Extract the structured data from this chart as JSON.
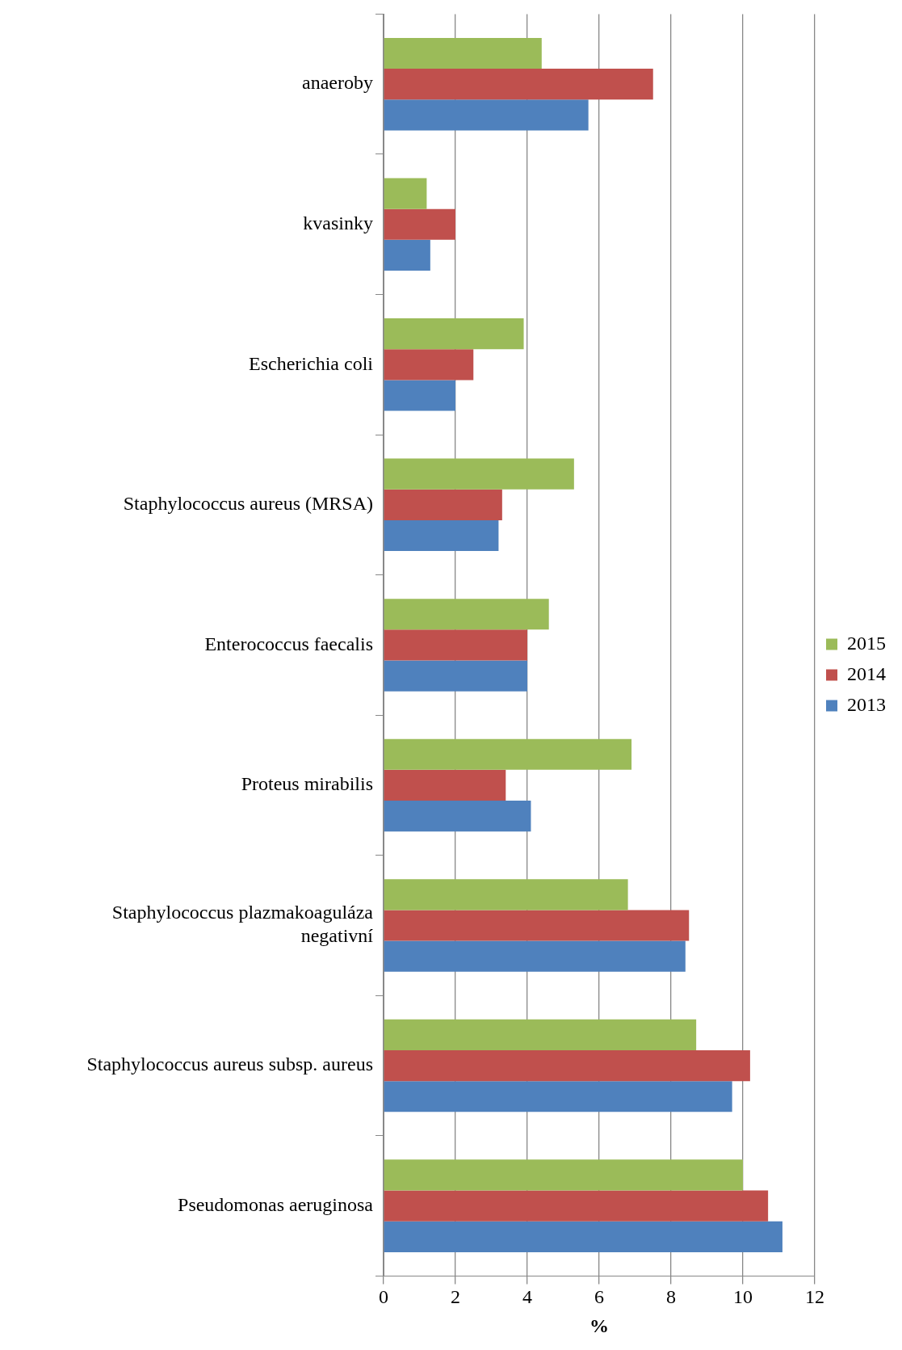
{
  "chart_data": {
    "type": "bar",
    "orientation": "horizontal",
    "xlabel": "%",
    "categories": [
      "anaeroby",
      "kvasinky",
      "Escherichia coli",
      "Staphylococcus aureus (MRSA)",
      "Enterococcus faecalis",
      "Proteus mirabilis",
      "Staphylococcus plazmakoaguláza negativní",
      "Staphylococcus aureus subsp. aureus",
      "Pseudomonas aeruginosa"
    ],
    "series": [
      {
        "name": "2015",
        "color": "#9bbb59",
        "values": [
          4.4,
          1.2,
          3.9,
          5.3,
          4.6,
          6.9,
          6.8,
          8.7,
          10.0
        ]
      },
      {
        "name": "2014",
        "color": "#c0504d",
        "values": [
          7.5,
          2.0,
          2.5,
          3.3,
          4.0,
          3.4,
          8.5,
          10.2,
          10.7
        ]
      },
      {
        "name": "2013",
        "color": "#4f81bd",
        "values": [
          5.7,
          1.3,
          2.0,
          3.2,
          4.0,
          4.1,
          8.4,
          9.7,
          11.1
        ]
      }
    ],
    "xlim": [
      0,
      12
    ],
    "xticks": [
      0,
      2,
      4,
      6,
      8,
      10,
      12
    ],
    "grid": "x",
    "legend": "right"
  }
}
